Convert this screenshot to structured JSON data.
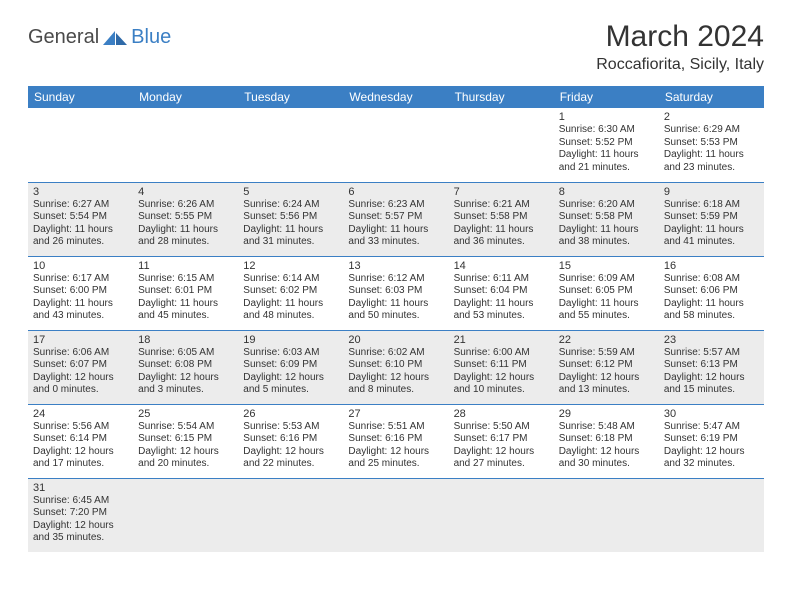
{
  "brand": {
    "part1": "General",
    "part2": "Blue"
  },
  "title": "March 2024",
  "location": "Roccafiorita, Sicily, Italy",
  "colors": {
    "header_bg": "#3b7fc4",
    "header_text": "#ffffff",
    "row_shade": "#ececec",
    "text": "#333333",
    "border": "#3b7fc4",
    "page_bg": "#ffffff"
  },
  "weekdays": [
    "Sunday",
    "Monday",
    "Tuesday",
    "Wednesday",
    "Thursday",
    "Friday",
    "Saturday"
  ],
  "weeks": [
    {
      "shaded": false,
      "days": [
        null,
        null,
        null,
        null,
        null,
        {
          "n": "1",
          "sunrise": "Sunrise: 6:30 AM",
          "sunset": "Sunset: 5:52 PM",
          "daylight": "Daylight: 11 hours and 21 minutes."
        },
        {
          "n": "2",
          "sunrise": "Sunrise: 6:29 AM",
          "sunset": "Sunset: 5:53 PM",
          "daylight": "Daylight: 11 hours and 23 minutes."
        }
      ]
    },
    {
      "shaded": true,
      "days": [
        {
          "n": "3",
          "sunrise": "Sunrise: 6:27 AM",
          "sunset": "Sunset: 5:54 PM",
          "daylight": "Daylight: 11 hours and 26 minutes."
        },
        {
          "n": "4",
          "sunrise": "Sunrise: 6:26 AM",
          "sunset": "Sunset: 5:55 PM",
          "daylight": "Daylight: 11 hours and 28 minutes."
        },
        {
          "n": "5",
          "sunrise": "Sunrise: 6:24 AM",
          "sunset": "Sunset: 5:56 PM",
          "daylight": "Daylight: 11 hours and 31 minutes."
        },
        {
          "n": "6",
          "sunrise": "Sunrise: 6:23 AM",
          "sunset": "Sunset: 5:57 PM",
          "daylight": "Daylight: 11 hours and 33 minutes."
        },
        {
          "n": "7",
          "sunrise": "Sunrise: 6:21 AM",
          "sunset": "Sunset: 5:58 PM",
          "daylight": "Daylight: 11 hours and 36 minutes."
        },
        {
          "n": "8",
          "sunrise": "Sunrise: 6:20 AM",
          "sunset": "Sunset: 5:58 PM",
          "daylight": "Daylight: 11 hours and 38 minutes."
        },
        {
          "n": "9",
          "sunrise": "Sunrise: 6:18 AM",
          "sunset": "Sunset: 5:59 PM",
          "daylight": "Daylight: 11 hours and 41 minutes."
        }
      ]
    },
    {
      "shaded": false,
      "days": [
        {
          "n": "10",
          "sunrise": "Sunrise: 6:17 AM",
          "sunset": "Sunset: 6:00 PM",
          "daylight": "Daylight: 11 hours and 43 minutes."
        },
        {
          "n": "11",
          "sunrise": "Sunrise: 6:15 AM",
          "sunset": "Sunset: 6:01 PM",
          "daylight": "Daylight: 11 hours and 45 minutes."
        },
        {
          "n": "12",
          "sunrise": "Sunrise: 6:14 AM",
          "sunset": "Sunset: 6:02 PM",
          "daylight": "Daylight: 11 hours and 48 minutes."
        },
        {
          "n": "13",
          "sunrise": "Sunrise: 6:12 AM",
          "sunset": "Sunset: 6:03 PM",
          "daylight": "Daylight: 11 hours and 50 minutes."
        },
        {
          "n": "14",
          "sunrise": "Sunrise: 6:11 AM",
          "sunset": "Sunset: 6:04 PM",
          "daylight": "Daylight: 11 hours and 53 minutes."
        },
        {
          "n": "15",
          "sunrise": "Sunrise: 6:09 AM",
          "sunset": "Sunset: 6:05 PM",
          "daylight": "Daylight: 11 hours and 55 minutes."
        },
        {
          "n": "16",
          "sunrise": "Sunrise: 6:08 AM",
          "sunset": "Sunset: 6:06 PM",
          "daylight": "Daylight: 11 hours and 58 minutes."
        }
      ]
    },
    {
      "shaded": true,
      "days": [
        {
          "n": "17",
          "sunrise": "Sunrise: 6:06 AM",
          "sunset": "Sunset: 6:07 PM",
          "daylight": "Daylight: 12 hours and 0 minutes."
        },
        {
          "n": "18",
          "sunrise": "Sunrise: 6:05 AM",
          "sunset": "Sunset: 6:08 PM",
          "daylight": "Daylight: 12 hours and 3 minutes."
        },
        {
          "n": "19",
          "sunrise": "Sunrise: 6:03 AM",
          "sunset": "Sunset: 6:09 PM",
          "daylight": "Daylight: 12 hours and 5 minutes."
        },
        {
          "n": "20",
          "sunrise": "Sunrise: 6:02 AM",
          "sunset": "Sunset: 6:10 PM",
          "daylight": "Daylight: 12 hours and 8 minutes."
        },
        {
          "n": "21",
          "sunrise": "Sunrise: 6:00 AM",
          "sunset": "Sunset: 6:11 PM",
          "daylight": "Daylight: 12 hours and 10 minutes."
        },
        {
          "n": "22",
          "sunrise": "Sunrise: 5:59 AM",
          "sunset": "Sunset: 6:12 PM",
          "daylight": "Daylight: 12 hours and 13 minutes."
        },
        {
          "n": "23",
          "sunrise": "Sunrise: 5:57 AM",
          "sunset": "Sunset: 6:13 PM",
          "daylight": "Daylight: 12 hours and 15 minutes."
        }
      ]
    },
    {
      "shaded": false,
      "days": [
        {
          "n": "24",
          "sunrise": "Sunrise: 5:56 AM",
          "sunset": "Sunset: 6:14 PM",
          "daylight": "Daylight: 12 hours and 17 minutes."
        },
        {
          "n": "25",
          "sunrise": "Sunrise: 5:54 AM",
          "sunset": "Sunset: 6:15 PM",
          "daylight": "Daylight: 12 hours and 20 minutes."
        },
        {
          "n": "26",
          "sunrise": "Sunrise: 5:53 AM",
          "sunset": "Sunset: 6:16 PM",
          "daylight": "Daylight: 12 hours and 22 minutes."
        },
        {
          "n": "27",
          "sunrise": "Sunrise: 5:51 AM",
          "sunset": "Sunset: 6:16 PM",
          "daylight": "Daylight: 12 hours and 25 minutes."
        },
        {
          "n": "28",
          "sunrise": "Sunrise: 5:50 AM",
          "sunset": "Sunset: 6:17 PM",
          "daylight": "Daylight: 12 hours and 27 minutes."
        },
        {
          "n": "29",
          "sunrise": "Sunrise: 5:48 AM",
          "sunset": "Sunset: 6:18 PM",
          "daylight": "Daylight: 12 hours and 30 minutes."
        },
        {
          "n": "30",
          "sunrise": "Sunrise: 5:47 AM",
          "sunset": "Sunset: 6:19 PM",
          "daylight": "Daylight: 12 hours and 32 minutes."
        }
      ]
    },
    {
      "shaded": true,
      "days": [
        {
          "n": "31",
          "sunrise": "Sunrise: 6:45 AM",
          "sunset": "Sunset: 7:20 PM",
          "daylight": "Daylight: 12 hours and 35 minutes."
        },
        null,
        null,
        null,
        null,
        null,
        null
      ]
    }
  ]
}
